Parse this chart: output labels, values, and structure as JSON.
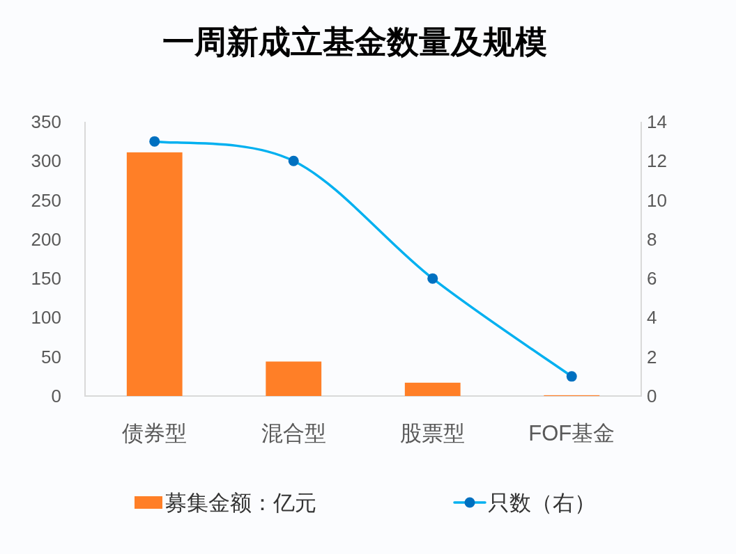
{
  "chart_data": {
    "type": "bar",
    "title": "一周新成立基金数量及规模",
    "categories": [
      "债券型",
      "混合型",
      "股票型",
      "FOF基金"
    ],
    "series": [
      {
        "name": "募集金额：亿元",
        "color": "#ff7f27",
        "values": [
          311,
          44,
          17,
          1
        ]
      },
      {
        "name": "只数（右）",
        "type": "line",
        "axis": "y2",
        "color": "#00b0f0",
        "colors": [
          "#0070c0",
          "#0070c0",
          "#0070c0",
          "#0070c0"
        ],
        "values": [
          13,
          12,
          6,
          1
        ]
      }
    ],
    "ylim": [
      0,
      350
    ],
    "yticks": [
      0,
      50,
      100,
      150,
      200,
      250,
      300,
      350
    ],
    "y2lim": [
      0,
      14
    ],
    "y2ticks": [
      0,
      2,
      4,
      6,
      8,
      10,
      12,
      14
    ],
    "grid": false,
    "legend": "bottom",
    "marker": "circle",
    "line_style": "solid"
  }
}
